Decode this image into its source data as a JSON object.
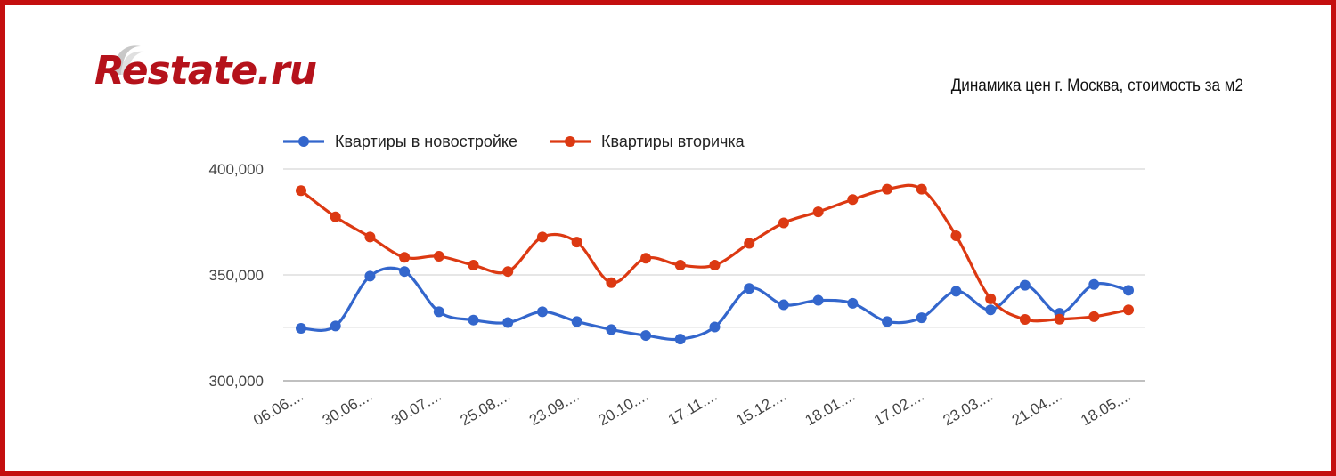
{
  "brand": {
    "logo_text": "Restate.ru"
  },
  "header": {
    "subtitle": "Динамика цен г. Москва, стоимость за м2"
  },
  "colors": {
    "frame": "#c40f0f",
    "logo": "#b5121b",
    "series_new": "#3366cc",
    "series_secondary": "#dc3912",
    "grid": "#dddddd"
  },
  "chart_data": {
    "type": "line",
    "title": "",
    "subtitle": "Динамика цен г. Москва, стоимость за м2",
    "xlabel": "",
    "ylabel": "",
    "ylim": [
      300000,
      400000
    ],
    "y_ticks": [
      300000,
      350000,
      400000
    ],
    "y_tick_labels": [
      "300,000",
      "350,000",
      "400,000"
    ],
    "grid": true,
    "legend_position": "top-left",
    "x_tick_labels": [
      "06.06....",
      "30.06....",
      "30.07....",
      "25.08....",
      "23.09....",
      "20.10....",
      "17.11....",
      "15.12....",
      "18.01....",
      "17.02....",
      "23.03....",
      "21.04....",
      "18.05...."
    ],
    "x_tick_every": 2,
    "series": [
      {
        "name": "Квартиры в новостройке",
        "color": "#3366cc",
        "values": [
          324800,
          325900,
          349400,
          351600,
          332600,
          328700,
          327500,
          332600,
          328000,
          324200,
          321400,
          319700,
          325400,
          343600,
          335900,
          338000,
          336600,
          328000,
          329800,
          342300,
          333500,
          345100,
          331900,
          345500,
          342700
        ]
      },
      {
        "name": "Квартиры вторичка",
        "color": "#dc3912",
        "values": [
          389800,
          377400,
          367900,
          358300,
          358800,
          354600,
          351600,
          367900,
          365500,
          346300,
          357900,
          354600,
          354600,
          364900,
          374600,
          379800,
          385600,
          390500,
          390500,
          368500,
          338700,
          329000,
          329100,
          330300,
          333500
        ]
      }
    ]
  }
}
